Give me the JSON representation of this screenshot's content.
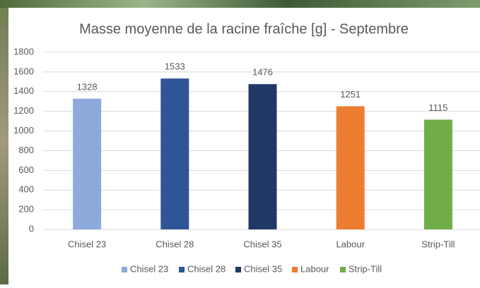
{
  "chart_data": {
    "type": "bar",
    "title": "Masse moyenne de la racine fraîche [g] - Septembre",
    "categories": [
      "Chisel 23",
      "Chisel 28",
      "Chisel 35",
      "Labour",
      "Strip-Till"
    ],
    "values": [
      1328,
      1533,
      1476,
      1251,
      1115
    ],
    "colors": [
      "#8eaadb",
      "#2f5597",
      "#1f3864",
      "#ed7d31",
      "#70ad47"
    ],
    "ylim": [
      0,
      1800
    ],
    "yticks": [
      0,
      200,
      400,
      600,
      800,
      1000,
      1200,
      1400,
      1600,
      1800
    ],
    "grid": true,
    "legend": "bottom"
  }
}
